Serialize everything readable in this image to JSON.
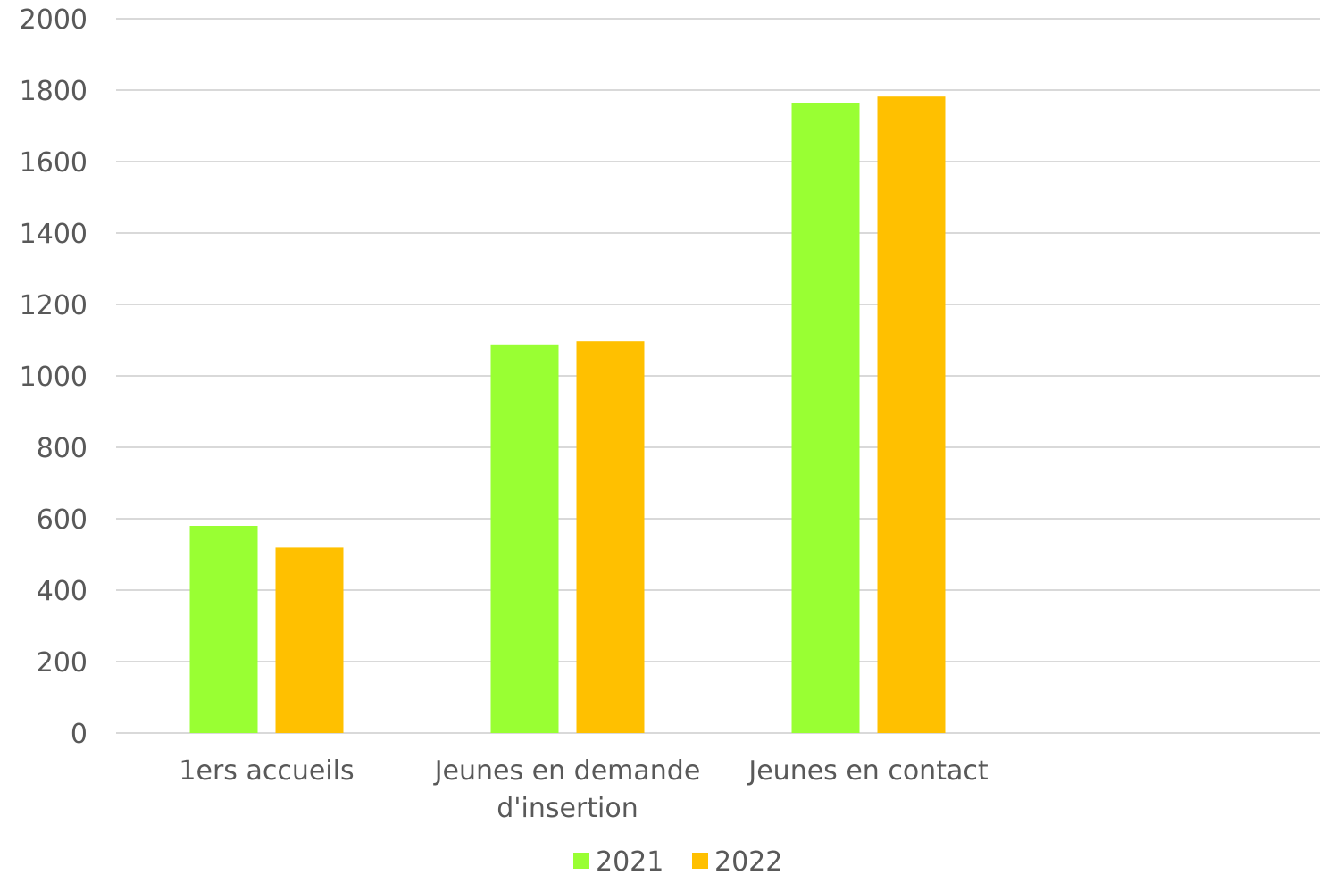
{
  "chart_data": {
    "type": "bar",
    "categories": [
      [
        "1ers accueils"
      ],
      [
        "Jeunes en demande",
        "d'insertion"
      ],
      [
        "Jeunes en contact"
      ],
      [
        ""
      ]
    ],
    "series": [
      {
        "name": "2021",
        "color": "#99ff33",
        "values": [
          580,
          1088,
          1765,
          null
        ]
      },
      {
        "name": "2022",
        "color": "#ffc000",
        "values": [
          519,
          1097,
          1782,
          null
        ]
      }
    ],
    "ylim": [
      0,
      2000
    ],
    "yticks": [
      0,
      200,
      400,
      600,
      800,
      1000,
      1200,
      1400,
      1600,
      1800,
      2000
    ],
    "grid": true,
    "legend_position": "bottom",
    "gridline_color": "#d9d9d9",
    "text_color": "#595959"
  }
}
